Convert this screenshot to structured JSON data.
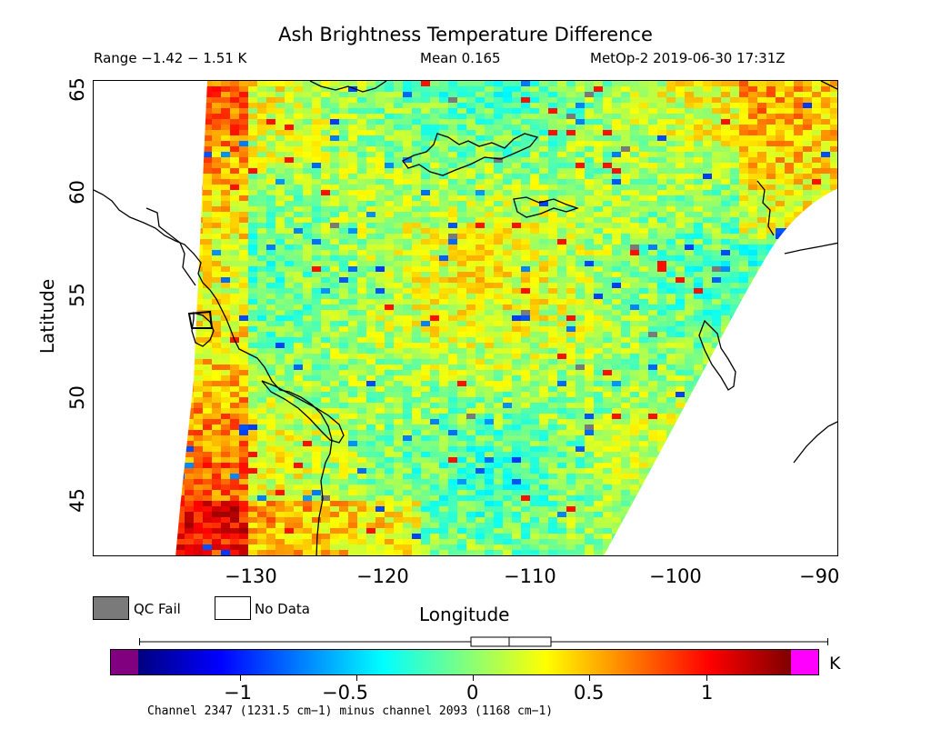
{
  "header": {
    "title": "Ash Brightness Temperature Difference",
    "range": "Range −1.42 − 1.51 K",
    "mean": "Mean 0.165",
    "satellite": "MetOp-2 2019-06-30 17:31Z"
  },
  "axes": {
    "ylabel": "Latitude",
    "xlabel": "Longitude",
    "lat_ticks": [
      "65",
      "60",
      "55",
      "50",
      "45"
    ],
    "lon_ticks": [
      "−130",
      "−120",
      "−110",
      "−100",
      "−90"
    ],
    "lat_range": [
      42.5,
      65.5
    ],
    "lon_range": [
      -140,
      -88.5
    ]
  },
  "legend": {
    "qc_fail": "QC Fail",
    "no_data": "No Data",
    "qc_color": "#7a7a7a"
  },
  "colorbar": {
    "unit": "K",
    "tick_labels": [
      "−1",
      "−0.5",
      "0",
      "0.5",
      "1"
    ],
    "min": -1.42,
    "max": 1.51,
    "under_color": "#800080",
    "over_color": "#ff00ff",
    "stops": [
      "#00007f",
      "#0000ff",
      "#007fff",
      "#00ffff",
      "#7fff7f",
      "#ffff00",
      "#ff7f00",
      "#ff0000",
      "#7f0000"
    ]
  },
  "footnote": "Channel 2347 (1231.5 cm−1) minus channel 2093 (1168 cm−1)"
}
